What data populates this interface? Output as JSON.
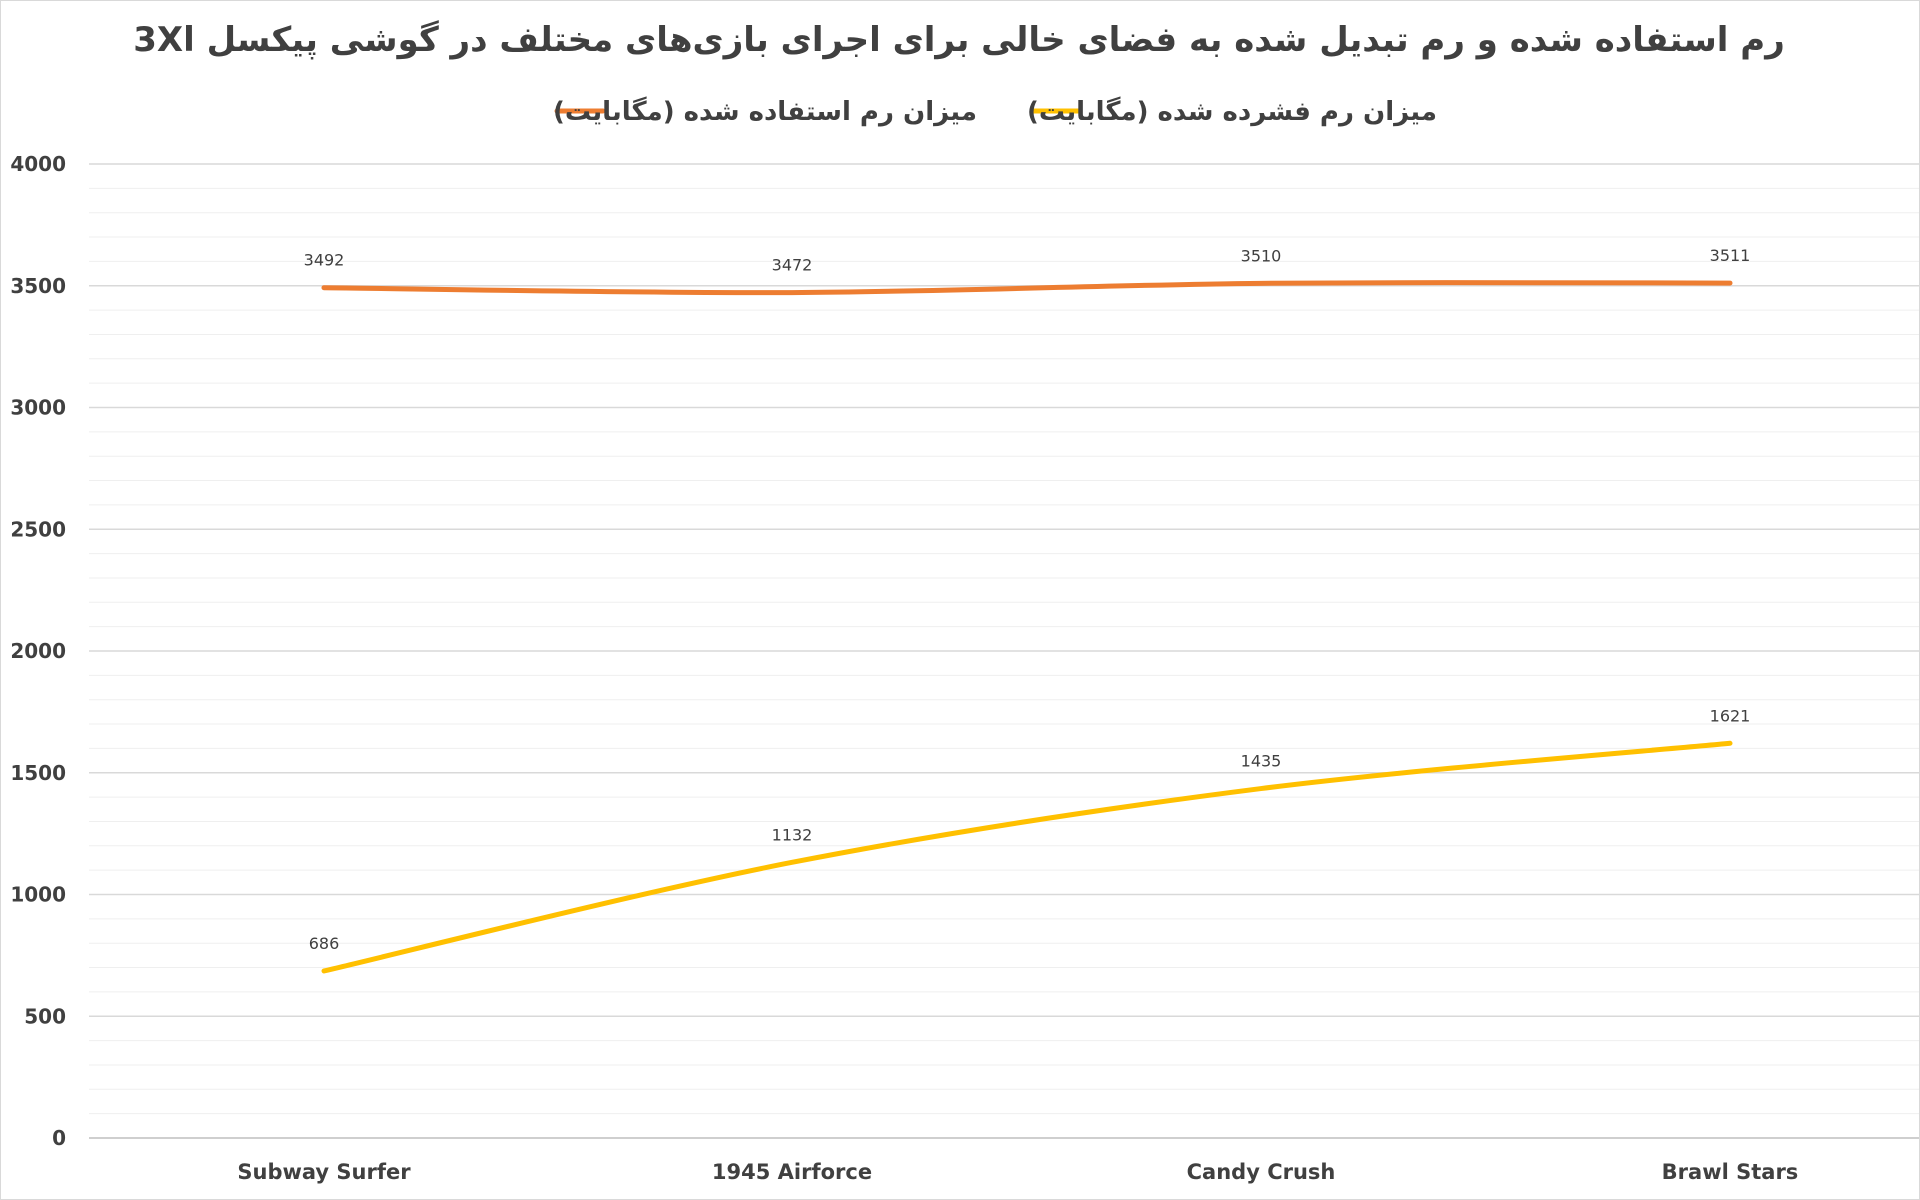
{
  "chart_data": {
    "type": "line",
    "title": "رم استفاده شده و رم تبدیل شده به فضای خالی برای اجرای بازی‌های مختلف در گوشی پیکسل 3Xl",
    "categories": [
      "Subway Surfer",
      "1945 Airforce",
      "Candy Crush",
      "Brawl Stars"
    ],
    "series": [
      {
        "name": "میزان رم استفاده شده (مگابایت)",
        "color": "#ED7D31",
        "values": [
          3492,
          3472,
          3510,
          3511
        ]
      },
      {
        "name": "میزان رم فشرده شده (مگابایت)",
        "color": "#FFC000",
        "values": [
          686,
          1132,
          1435,
          1621
        ]
      }
    ],
    "ylim": [
      0,
      4000
    ],
    "yticks": [
      0,
      500,
      1000,
      1500,
      2000,
      2500,
      3000,
      3500,
      4000
    ],
    "xlabel": "",
    "ylabel": "",
    "grid": true,
    "minor_grid": true,
    "legend": "top-center",
    "data_labels": true,
    "smooth": true,
    "gridline_color": "#d9d9d9",
    "text_color": "#404040"
  }
}
